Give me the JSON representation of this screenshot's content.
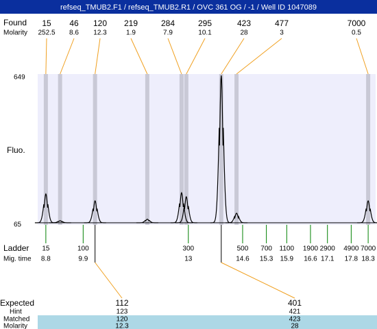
{
  "chart_data": {
    "type": "electropherogram",
    "title": "refseq_TMUB2.F1 / refseq_TMUB2.R1 / OVC 361 OG / -1 / Well ID 1047089",
    "ylabel": "Fluo.",
    "ylim": [
      65,
      649
    ],
    "yticks": [
      65,
      649
    ],
    "xlim": [
      8.56,
      18.52
    ],
    "found": {
      "label": "Found",
      "molarity_label": "Molarity",
      "peaks": [
        {
          "size": 15,
          "molarity": 252.5,
          "time": 8.8,
          "height": 179
        },
        {
          "size": 46,
          "molarity": 8.6,
          "time": 9.22,
          "height": 73
        },
        {
          "size": 120,
          "molarity": 12.3,
          "time": 10.25,
          "height": 152
        },
        {
          "size": 219,
          "molarity": 1.9,
          "time": 11.79,
          "height": 79
        },
        {
          "size": 284,
          "molarity": 7.9,
          "time": 12.8,
          "height": 184
        },
        {
          "size": 295,
          "molarity": 10.1,
          "time": 12.94,
          "height": 168
        },
        {
          "size": 423,
          "molarity": 28,
          "time": 13.97,
          "height": 649
        },
        {
          "size": 477,
          "molarity": 3,
          "time": 14.42,
          "height": 103
        },
        {
          "size": 7000,
          "molarity": 0.5,
          "time": 18.3,
          "height": 152
        }
      ]
    },
    "ladder": {
      "label": "Ladder",
      "time_label": "Mig. time",
      "sizes": [
        15,
        100,
        300,
        500,
        700,
        1100,
        1900,
        2900,
        4900,
        7000
      ],
      "times": [
        8.8,
        9.9,
        13,
        14.6,
        15.3,
        15.9,
        16.6,
        17.1,
        17.8,
        18.3
      ]
    },
    "expected": {
      "labels": [
        "Expected",
        "Hint",
        "Matched",
        "Molarity"
      ],
      "columns": [
        {
          "expected": 112,
          "hint": 123,
          "matched": 120,
          "molarity": 12.3
        },
        {
          "expected": 401,
          "hint": 421,
          "matched": 423,
          "molarity": 28
        }
      ]
    }
  }
}
